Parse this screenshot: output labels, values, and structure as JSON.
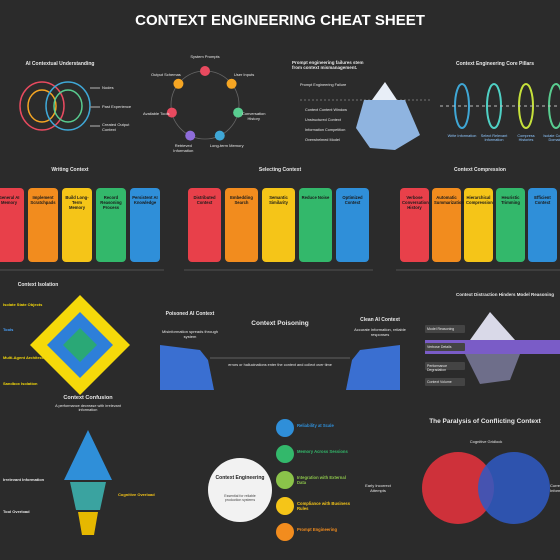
{
  "title": "CONTEXT ENGINEERING CHEAT SHEET",
  "understanding": {
    "title": "AI Contextual Understanding",
    "labels": [
      "Nodes",
      "Past Experience",
      "Created Output Context"
    ]
  },
  "cycle": {
    "labels": [
      "System Prompts",
      "User Inputs",
      "Conversation History",
      "Long-term Memory",
      "Retrieved Information",
      "Available Tools",
      "Output Schemas"
    ]
  },
  "iceberg": {
    "title": "Prompt engineering failures stem from context mismanagement.",
    "top": "Prompt Engineering Failure",
    "labels": [
      "Context Content Window",
      "Unstructured Context",
      "Information Competition",
      "Overwhelmed Model"
    ]
  },
  "pillars": {
    "title": "Context Engineering Core Pillars",
    "labels": [
      "Write Information",
      "Select Relevant Information",
      "Compress Histories",
      "Isolate Context Domains"
    ]
  },
  "writing": {
    "title": "Writing Context",
    "cards": [
      "General AI Memory",
      "Implement Scratchpads",
      "Build Long-Term Memory",
      "Record Reasoning Process",
      "Persistent AI Knowledge"
    ]
  },
  "selecting": {
    "title": "Selecting Context",
    "cards": [
      "Distributed Context",
      "Embedding Search",
      "Semantic Similarity",
      "Reduce Noise",
      "Optimized Context"
    ]
  },
  "compression": {
    "title": "Context Compression",
    "cards": [
      "Verbose Conversation History",
      "Automatic Summarization",
      "Hierarchical Compression",
      "Heuristic Trimming",
      "Efficient Context"
    ]
  },
  "isolation": {
    "title": "Context Isolation",
    "labels": [
      "Isolate State Objects",
      "Tools",
      "Multi-Agent Architectures",
      "Sandbox Isolation"
    ]
  },
  "poisoning": {
    "title": "Context Poisoning",
    "left_title": "Poisoned AI Context",
    "left_text": "Misinformation spreads through system",
    "right_title": "Clean AI Context",
    "right_text": "Accurate information, reliable responses",
    "center": "errors or hallucinations enter the context and collect over time"
  },
  "distraction": {
    "title": "Context Distraction Hinders Model Reasoning",
    "labels": [
      "Model Reasoning",
      "Verbose Details",
      "Performance Degradation",
      "Context Volume"
    ]
  },
  "confusion": {
    "title": "Context Confusion",
    "subtitle": "A performance decrease with irrelevant information",
    "labels": [
      "Irrelevant Information",
      "Cognitive Overload",
      "Tool Overload"
    ]
  },
  "center": {
    "title": "Context Engineering",
    "subtitle": "Essential for reliable production systems",
    "items": [
      "Reliability at Scale",
      "Memory Across Sessions",
      "Integration with External Data",
      "Compliance with Business Rules",
      "Prompt Engineering"
    ]
  },
  "paralysis": {
    "title": "The Paralysis of Conflicting Context",
    "top": "Cognitive Gridlock",
    "left": "Early Incorrect Attempts",
    "right": "Current Information"
  }
}
